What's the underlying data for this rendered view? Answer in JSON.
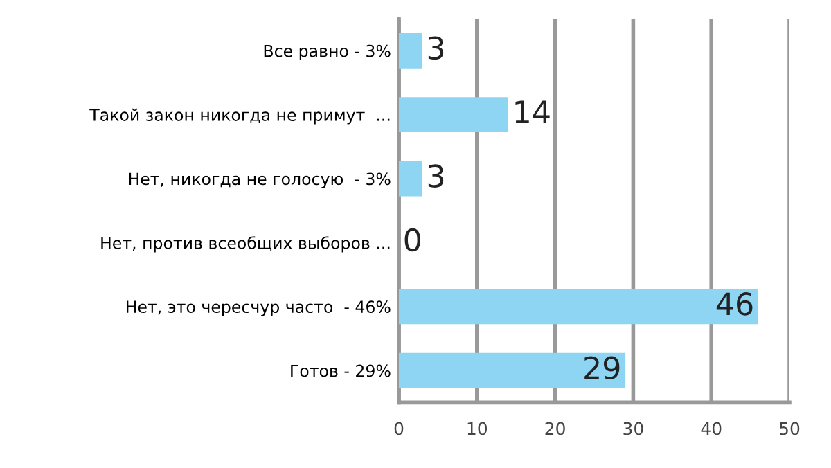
{
  "chart_data": {
    "type": "bar",
    "orientation": "horizontal",
    "categories": [
      "Все равно - 3%",
      "Такой закон никогда не примут  ...",
      "Нет, никогда не голосую  - 3%",
      "Нет, против всеобщих выборов ...",
      "Нет, это чересчур часто  - 46%",
      "Готов - 29%"
    ],
    "values": [
      3,
      14,
      3,
      0,
      46,
      29
    ],
    "color": "#8dd5f2",
    "xlim": [
      0,
      50
    ],
    "xticks": [
      0,
      10,
      20,
      30,
      40,
      50
    ],
    "grid": "x",
    "data_labels": true
  }
}
